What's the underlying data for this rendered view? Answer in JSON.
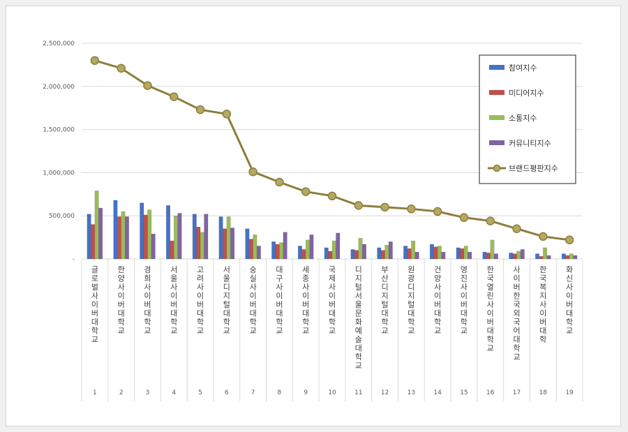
{
  "chart_data": {
    "type": "bar",
    "y_ticks": [
      "2,500,000",
      "2,000,000",
      "1,500,000",
      "1,000,000",
      "500,000",
      "-"
    ],
    "ylim": [
      0,
      2500000
    ],
    "grid": true,
    "legend_position": "top-right",
    "categories": [
      "글로벌사이버대학교",
      "한양사이버대학교",
      "경희사이버대학교",
      "서울사이버대학교",
      "고려사이버대학교",
      "서울디지털대학교",
      "숭실사이버대학교",
      "대구사이버대학교",
      "세종사이버대학교",
      "국제사이버대학교",
      "디지털서울문화예술대학교",
      "부산디지털대학교",
      "원광디지털대학교",
      "건양사이버대학교",
      "영진사이버대학교",
      "한국열린사이버대학교",
      "사이버한국외국어대학교",
      "한국복지사이버대학",
      "화신사이버대학교"
    ],
    "ranks": [
      "1",
      "2",
      "3",
      "4",
      "5",
      "6",
      "7",
      "8",
      "9",
      "10",
      "11",
      "12",
      "13",
      "14",
      "15",
      "16",
      "17",
      "18",
      "19"
    ],
    "series": [
      {
        "name": "참여지수",
        "kind": "bar",
        "color": "#4472c4",
        "values": [
          520000,
          680000,
          650000,
          620000,
          520000,
          490000,
          350000,
          200000,
          150000,
          130000,
          110000,
          130000,
          150000,
          170000,
          130000,
          80000,
          70000,
          60000,
          60000
        ]
      },
      {
        "name": "미디어지수",
        "kind": "bar",
        "color": "#c0504d",
        "values": [
          400000,
          490000,
          510000,
          210000,
          370000,
          350000,
          230000,
          170000,
          110000,
          90000,
          100000,
          100000,
          120000,
          140000,
          120000,
          70000,
          60000,
          30000,
          40000
        ]
      },
      {
        "name": "소통지수",
        "kind": "bar",
        "color": "#9bbb59",
        "values": [
          790000,
          550000,
          570000,
          500000,
          310000,
          490000,
          280000,
          190000,
          220000,
          210000,
          240000,
          160000,
          210000,
          150000,
          150000,
          220000,
          90000,
          130000,
          60000
        ]
      },
      {
        "name": "커뮤니티지수",
        "kind": "bar",
        "color": "#8064a2",
        "values": [
          590000,
          490000,
          290000,
          530000,
          520000,
          360000,
          150000,
          310000,
          280000,
          300000,
          170000,
          200000,
          80000,
          80000,
          80000,
          60000,
          110000,
          40000,
          40000
        ]
      },
      {
        "name": "브랜드평판지수",
        "kind": "line",
        "color": "#8c7e3c",
        "values": [
          2300000,
          2210000,
          2010000,
          1880000,
          1730000,
          1680000,
          1010000,
          890000,
          780000,
          730000,
          620000,
          600000,
          580000,
          550000,
          480000,
          440000,
          350000,
          260000,
          220000
        ]
      }
    ]
  }
}
